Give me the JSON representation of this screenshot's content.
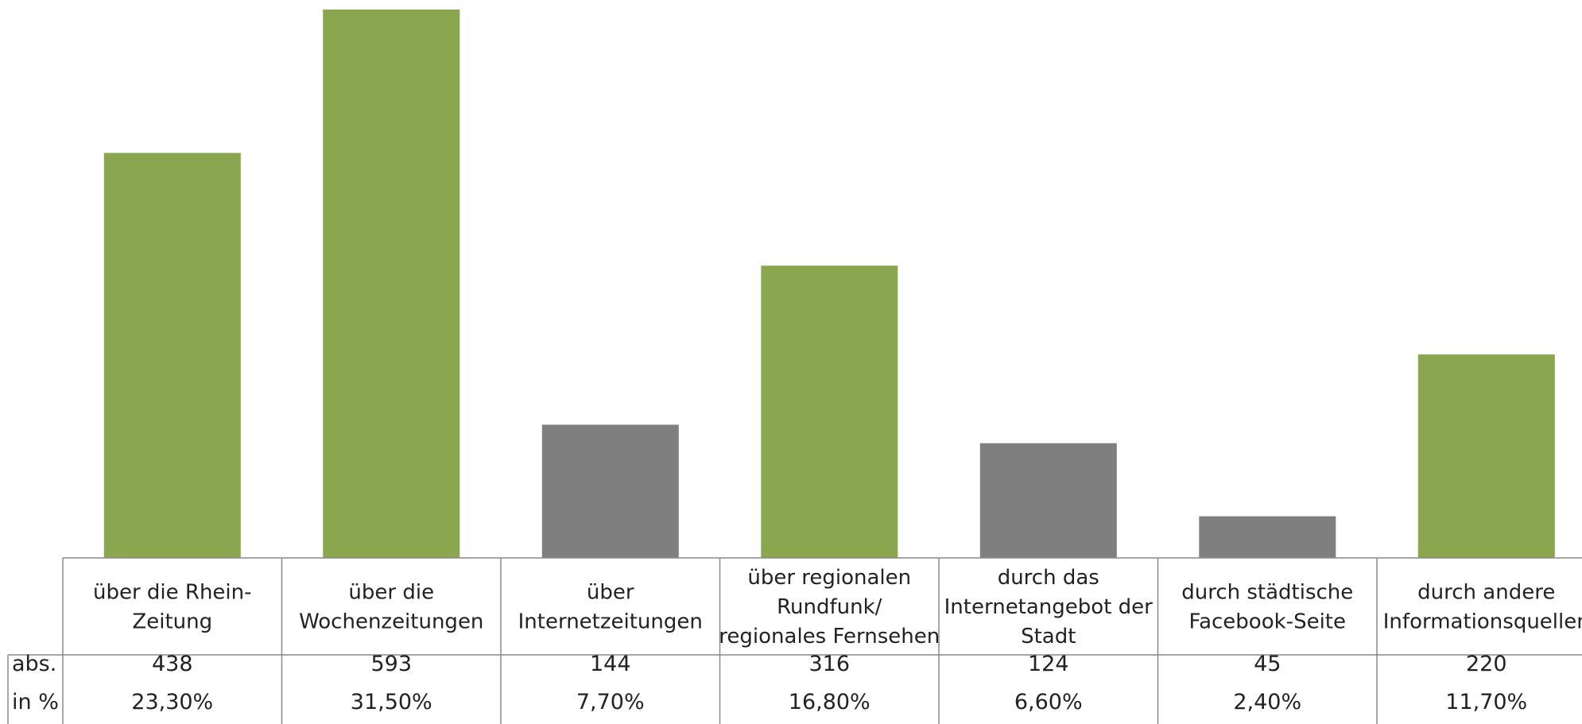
{
  "chart_data": {
    "type": "bar",
    "title": "",
    "xlabel": "",
    "ylabel": "",
    "ylim": [
      0,
      600
    ],
    "grid": false,
    "legend": "none",
    "categories": [
      [
        "über die Rhein-",
        "Zeitung"
      ],
      [
        "über die",
        "Wochenzeitungen"
      ],
      [
        "über",
        "Internetzeitungen"
      ],
      [
        "über regionalen",
        "Rundfunk/",
        "regionales Fernsehen"
      ],
      [
        "durch das",
        "Internetangebot der",
        "Stadt"
      ],
      [
        "durch städtische",
        "Facebook-Seite"
      ],
      [
        "durch andere",
        "Informationsquellen"
      ]
    ],
    "values": [
      438,
      593,
      144,
      316,
      124,
      45,
      220
    ],
    "bar_colors": [
      "#8aa64f",
      "#8aa64f",
      "#7f7f7f",
      "#8aa64f",
      "#7f7f7f",
      "#7f7f7f",
      "#8aa64f"
    ],
    "table": {
      "rows": [
        {
          "label": "abs.",
          "cells": [
            "438",
            "593",
            "144",
            "316",
            "124",
            "45",
            "220"
          ]
        },
        {
          "label": "in %",
          "cells": [
            "23,30%",
            "31,50%",
            "7,70%",
            "16,80%",
            "6,60%",
            "2,40%",
            "11,70%"
          ]
        }
      ]
    }
  }
}
